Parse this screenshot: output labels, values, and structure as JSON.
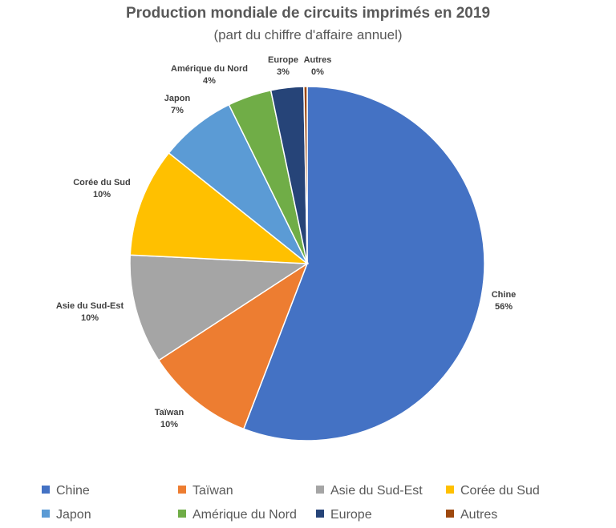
{
  "chart_data": {
    "type": "pie",
    "title": "Production mondiale de circuits imprimés en 2019",
    "subtitle": "(part du chiffre d'affaire annuel)",
    "slices": [
      {
        "label": "Chine",
        "value": 56,
        "value_label": "56%",
        "color": "#4472C4"
      },
      {
        "label": "Taïwan",
        "value": 10,
        "value_label": "10%",
        "color": "#ED7D31"
      },
      {
        "label": "Asie du Sud-Est",
        "value": 10,
        "value_label": "10%",
        "color": "#A5A5A5"
      },
      {
        "label": "Corée du Sud",
        "value": 10,
        "value_label": "10%",
        "color": "#FFC000"
      },
      {
        "label": "Japon",
        "value": 7,
        "value_label": "7%",
        "color": "#5B9BD5"
      },
      {
        "label": "Amérique du Nord",
        "value": 4,
        "value_label": "4%",
        "color": "#70AD47"
      },
      {
        "label": "Europe",
        "value": 3,
        "value_label": "3%",
        "color": "#264478"
      },
      {
        "label": "Autres",
        "value": 0.3,
        "value_label": "0%",
        "color": "#9E480E"
      }
    ],
    "legend_position": "bottom"
  }
}
